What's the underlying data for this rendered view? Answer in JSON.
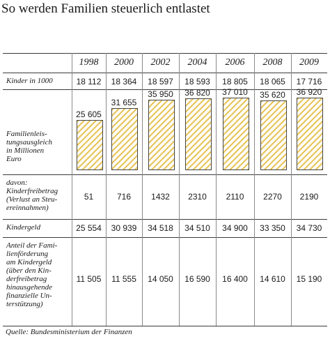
{
  "title": "So werden Familien steuerlich entlastet",
  "source": "Quelle: Bundesministerium der Finanzen",
  "chart_data": {
    "type": "table",
    "title": "So werden Familien steuerlich entlastet",
    "years": [
      "1998",
      "2000",
      "2002",
      "2004",
      "2006",
      "2008",
      "2009"
    ],
    "rows": [
      {
        "label": "Kinder in 1000",
        "values": [
          "18 112",
          "18 364",
          "18 597",
          "18 593",
          "18 805",
          "18 065",
          "17 716"
        ]
      },
      {
        "label": "Familienleis-\ntungsausgleich\nin Millionen\nEuro",
        "values": [
          "25 605",
          "31 655",
          "35 950",
          "36 820",
          "37 010",
          "35 620",
          "36 920"
        ],
        "numeric": [
          25605,
          31655,
          35950,
          36820,
          37010,
          35620,
          36920
        ],
        "bar_color": "#e8c55a"
      },
      {
        "label": "davon:\nKinderfreibetrag\n(Verlust an Steu-\nereinnahmen)",
        "values": [
          "51",
          "716",
          "1432",
          "2310",
          "2110",
          "2270",
          "2190"
        ]
      },
      {
        "label": "Kindergeld",
        "values": [
          "25 554",
          "30 939",
          "34 518",
          "34 510",
          "34 900",
          "33 350",
          "34 730"
        ]
      },
      {
        "label": "Anteil der Fami-\nlienförderung\nam Kindergeld\n(über den Kin-\nderfreibetrag\nhinausgehende\nfinanzielle Un-\nterstützung)",
        "values": [
          "11 505",
          "11 555",
          "14 050",
          "16 590",
          "16 400",
          "14 610",
          "15 190"
        ]
      }
    ]
  }
}
